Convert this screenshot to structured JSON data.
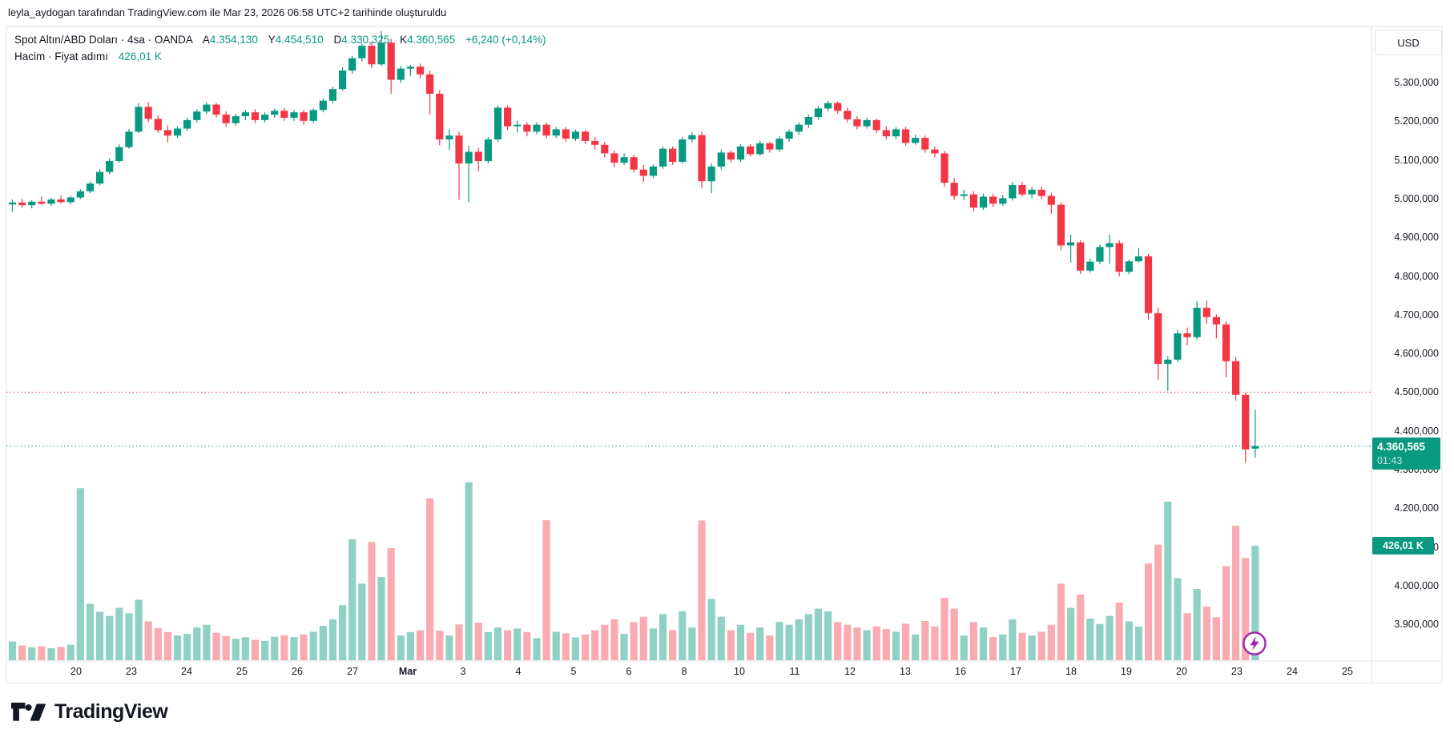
{
  "attribution": "leyla_aydogan tarafından TradingView.com ile Mar 23, 2026 06:58 UTC+2 tarihinde oluşturuldu",
  "legend": {
    "title_full": "Spot Altın/ABD Doları · 4sa · OANDA",
    "ohlc": [
      {
        "label": "A",
        "value": "4.354,130"
      },
      {
        "label": "Y",
        "value": "4.454,510"
      },
      {
        "label": "D",
        "value": "4.330,325"
      },
      {
        "label": "K",
        "value": "4.360,565"
      }
    ],
    "change": "+6,240 (+0,14%)",
    "volume_row": {
      "label": "Hacim · Fiyat adımı",
      "value": "426,01 K"
    }
  },
  "price_axis": {
    "currency": "USD",
    "labels": [
      {
        "text": "5.300,000",
        "price": 5300
      },
      {
        "text": "5.200,000",
        "price": 5200
      },
      {
        "text": "5.100,000",
        "price": 5100
      },
      {
        "text": "5.000,000",
        "price": 5000
      },
      {
        "text": "4.900,000",
        "price": 4900
      },
      {
        "text": "4.800,000",
        "price": 4800
      },
      {
        "text": "4.700,000",
        "price": 4700
      },
      {
        "text": "4.600,000",
        "price": 4600
      },
      {
        "text": "4.500,000",
        "price": 4500
      },
      {
        "text": "4.400,000",
        "price": 4400
      },
      {
        "text": "4.300,000",
        "price": 4300
      },
      {
        "text": "4.200,000",
        "price": 4200
      },
      {
        "text": "4.100,000",
        "price": 4100
      },
      {
        "text": "4.000,000",
        "price": 4000
      },
      {
        "text": "3.900,000",
        "price": 3900
      }
    ],
    "price_badge": {
      "price_text": "4.360,565",
      "countdown": "01:43",
      "price": 4360.565
    },
    "volume_badge": {
      "text": "426,01 K",
      "volume_k": 426.01
    }
  },
  "levels": [
    {
      "price": 4500,
      "color_key": "down"
    },
    {
      "price": 4360.565,
      "color_key": "up"
    }
  ],
  "colors": {
    "up": "#089981",
    "down": "#f23645",
    "vol_up": "rgba(8,153,129,0.45)",
    "vol_down": "rgba(242,54,69,0.42)",
    "badge": "#089981",
    "text": "#131722",
    "frame": "#e0e3eb",
    "purple": "#9c27b0"
  },
  "branding": {
    "logo_text": "TradingView"
  },
  "chart_data": {
    "type": "candlestick",
    "volume_overlay": true,
    "title": "Spot Altın/ABD Doları",
    "symbol": "Spot Altın/ABD Doları",
    "interval": "4sa",
    "exchange": "OANDA",
    "unit": "USD",
    "y_range_visible": [
      3870,
      5450
    ],
    "grid": false,
    "x_tick_labels": [
      "20",
      "23",
      "24",
      "25",
      "26",
      "27",
      "Mar",
      "3",
      "4",
      "5",
      "6",
      "8",
      "10",
      "11",
      "12",
      "13",
      "16",
      "17",
      "18",
      "19",
      "20",
      "23",
      "24",
      "25"
    ],
    "x_bold_label": "Mar",
    "ohlcv_columns": [
      "open",
      "high",
      "low",
      "close",
      "volume_k"
    ],
    "ohlcv": [
      [
        4985,
        4998,
        4966,
        4990,
        70
      ],
      [
        4990,
        4999,
        4976,
        4983,
        55
      ],
      [
        4983,
        4996,
        4975,
        4992,
        48
      ],
      [
        4992,
        5006,
        4984,
        4987,
        52
      ],
      [
        4987,
        5002,
        4981,
        4998,
        45
      ],
      [
        4998,
        5008,
        4987,
        4991,
        50
      ],
      [
        4991,
        5007,
        4985,
        5003,
        58
      ],
      [
        5003,
        5024,
        4999,
        5019,
        640
      ],
      [
        5019,
        5044,
        5014,
        5039,
        210
      ],
      [
        5039,
        5076,
        5034,
        5069,
        180
      ],
      [
        5069,
        5104,
        5063,
        5097,
        165
      ],
      [
        5097,
        5140,
        5093,
        5133,
        195
      ],
      [
        5133,
        5180,
        5129,
        5173,
        175
      ],
      [
        5173,
        5246,
        5169,
        5237,
        225
      ],
      [
        5237,
        5249,
        5198,
        5206,
        145
      ],
      [
        5206,
        5215,
        5170,
        5177,
        120
      ],
      [
        5177,
        5189,
        5146,
        5163,
        105
      ],
      [
        5163,
        5187,
        5157,
        5181,
        92
      ],
      [
        5181,
        5209,
        5175,
        5203,
        98
      ],
      [
        5203,
        5231,
        5197,
        5225,
        122
      ],
      [
        5225,
        5249,
        5219,
        5243,
        132
      ],
      [
        5243,
        5247,
        5209,
        5217,
        102
      ],
      [
        5217,
        5225,
        5185,
        5195,
        90
      ],
      [
        5195,
        5219,
        5189,
        5213,
        80
      ],
      [
        5213,
        5229,
        5203,
        5223,
        86
      ],
      [
        5223,
        5231,
        5195,
        5203,
        76
      ],
      [
        5203,
        5223,
        5197,
        5217,
        72
      ],
      [
        5217,
        5233,
        5209,
        5227,
        88
      ],
      [
        5227,
        5235,
        5201,
        5209,
        93
      ],
      [
        5209,
        5229,
        5201,
        5223,
        86
      ],
      [
        5223,
        5229,
        5191,
        5201,
        96
      ],
      [
        5201,
        5233,
        5195,
        5229,
        106
      ],
      [
        5229,
        5259,
        5223,
        5253,
        128
      ],
      [
        5253,
        5289,
        5247,
        5283,
        152
      ],
      [
        5283,
        5339,
        5279,
        5331,
        205
      ],
      [
        5331,
        5369,
        5323,
        5363,
        450
      ],
      [
        5363,
        5401,
        5355,
        5395,
        285
      ],
      [
        5395,
        5405,
        5337,
        5347,
        440
      ],
      [
        5347,
        5433,
        5343,
        5403,
        310
      ],
      [
        5403,
        5413,
        5271,
        5307,
        417
      ],
      [
        5307,
        5343,
        5299,
        5336,
        92
      ],
      [
        5336,
        5346,
        5317,
        5341,
        105
      ],
      [
        5341,
        5349,
        5311,
        5321,
        112
      ],
      [
        5321,
        5331,
        5217,
        5271,
        602
      ],
      [
        5271,
        5281,
        5138,
        5153,
        110
      ],
      [
        5153,
        5179,
        5126,
        5163,
        92
      ],
      [
        5163,
        5173,
        4997,
        5091,
        133
      ],
      [
        5091,
        5136,
        4991,
        5121,
        662
      ],
      [
        5121,
        5131,
        5071,
        5097,
        140
      ],
      [
        5097,
        5159,
        5091,
        5153,
        105
      ],
      [
        5153,
        5241,
        5147,
        5235,
        122
      ],
      [
        5235,
        5241,
        5177,
        5187,
        112
      ],
      [
        5187,
        5201,
        5171,
        5191,
        118
      ],
      [
        5191,
        5197,
        5161,
        5173,
        105
      ],
      [
        5173,
        5197,
        5167,
        5191,
        82
      ],
      [
        5191,
        5197,
        5155,
        5163,
        521
      ],
      [
        5163,
        5185,
        5157,
        5179,
        106
      ],
      [
        5179,
        5185,
        5147,
        5155,
        100
      ],
      [
        5155,
        5179,
        5149,
        5173,
        85
      ],
      [
        5173,
        5177,
        5141,
        5149,
        96
      ],
      [
        5149,
        5159,
        5127,
        5139,
        112
      ],
      [
        5139,
        5147,
        5107,
        5117,
        132
      ],
      [
        5117,
        5125,
        5081,
        5093,
        152
      ],
      [
        5093,
        5117,
        5087,
        5107,
        98
      ],
      [
        5107,
        5113,
        5067,
        5075,
        142
      ],
      [
        5075,
        5087,
        5043,
        5059,
        162
      ],
      [
        5059,
        5089,
        5053,
        5083,
        118
      ],
      [
        5083,
        5135,
        5077,
        5129,
        172
      ],
      [
        5129,
        5135,
        5087,
        5095,
        112
      ],
      [
        5095,
        5159,
        5091,
        5153,
        182
      ],
      [
        5153,
        5171,
        5144,
        5164,
        122
      ],
      [
        5164,
        5173,
        5027,
        5045,
        520
      ],
      [
        5045,
        5091,
        5014,
        5083,
        228
      ],
      [
        5083,
        5127,
        5075,
        5119,
        162
      ],
      [
        5119,
        5125,
        5093,
        5101,
        112
      ],
      [
        5101,
        5141,
        5095,
        5135,
        132
      ],
      [
        5135,
        5141,
        5109,
        5115,
        102
      ],
      [
        5115,
        5149,
        5111,
        5143,
        122
      ],
      [
        5143,
        5147,
        5119,
        5127,
        92
      ],
      [
        5127,
        5161,
        5121,
        5155,
        142
      ],
      [
        5155,
        5179,
        5147,
        5173,
        132
      ],
      [
        5173,
        5197,
        5165,
        5191,
        152
      ],
      [
        5191,
        5217,
        5183,
        5211,
        172
      ],
      [
        5211,
        5239,
        5203,
        5233,
        192
      ],
      [
        5233,
        5253,
        5225,
        5247,
        182
      ],
      [
        5247,
        5251,
        5219,
        5227,
        142
      ],
      [
        5227,
        5235,
        5197,
        5205,
        132
      ],
      [
        5205,
        5213,
        5179,
        5187,
        122
      ],
      [
        5187,
        5209,
        5181,
        5203,
        112
      ],
      [
        5203,
        5207,
        5169,
        5177,
        126
      ],
      [
        5177,
        5187,
        5153,
        5161,
        116
      ],
      [
        5161,
        5185,
        5155,
        5179,
        106
      ],
      [
        5179,
        5185,
        5137,
        5144,
        136
      ],
      [
        5144,
        5165,
        5139,
        5157,
        96
      ],
      [
        5157,
        5163,
        5119,
        5127,
        146
      ],
      [
        5127,
        5135,
        5107,
        5117,
        126
      ],
      [
        5117,
        5123,
        5031,
        5041,
        232
      ],
      [
        5041,
        5053,
        4997,
        5007,
        192
      ],
      [
        5007,
        5023,
        4997,
        5011,
        92
      ],
      [
        5011,
        5019,
        4967,
        4977,
        142
      ],
      [
        4977,
        5013,
        4971,
        5005,
        122
      ],
      [
        5005,
        5013,
        4979,
        4987,
        86
      ],
      [
        4987,
        5009,
        4981,
        5001,
        96
      ],
      [
        5001,
        5043,
        4995,
        5035,
        152
      ],
      [
        5035,
        5043,
        5005,
        5011,
        102
      ],
      [
        5011,
        5031,
        5001,
        5023,
        92
      ],
      [
        5023,
        5031,
        4999,
        5007,
        106
      ],
      [
        5007,
        5015,
        4961,
        4984,
        132
      ],
      [
        4984,
        4991,
        4867,
        4879,
        285
      ],
      [
        4879,
        4907,
        4835,
        4887,
        195
      ],
      [
        4887,
        4893,
        4805,
        4814,
        245
      ],
      [
        4814,
        4845,
        4809,
        4837,
        155
      ],
      [
        4837,
        4881,
        4831,
        4875,
        135
      ],
      [
        4875,
        4907,
        4832,
        4885,
        165
      ],
      [
        4885,
        4893,
        4799,
        4811,
        215
      ],
      [
        4811,
        4843,
        4805,
        4838,
        145
      ],
      [
        4838,
        4873,
        4835,
        4851,
        125
      ],
      [
        4851,
        4857,
        4687,
        4704,
        360
      ],
      [
        4704,
        4719,
        4532,
        4573,
        430
      ],
      [
        4573,
        4593,
        4503,
        4584,
        590
      ],
      [
        4584,
        4661,
        4577,
        4652,
        305
      ],
      [
        4652,
        4667,
        4621,
        4642,
        175
      ],
      [
        4642,
        4735,
        4635,
        4718,
        265
      ],
      [
        4718,
        4737,
        4677,
        4694,
        200
      ],
      [
        4694,
        4701,
        4639,
        4675,
        160
      ],
      [
        4675,
        4683,
        4538,
        4580,
        350
      ],
      [
        4580,
        4591,
        4478,
        4493,
        500
      ],
      [
        4493,
        4499,
        4318,
        4352,
        380
      ],
      [
        4354.13,
        4454.51,
        4330.325,
        4360.565,
        426.01
      ]
    ]
  }
}
